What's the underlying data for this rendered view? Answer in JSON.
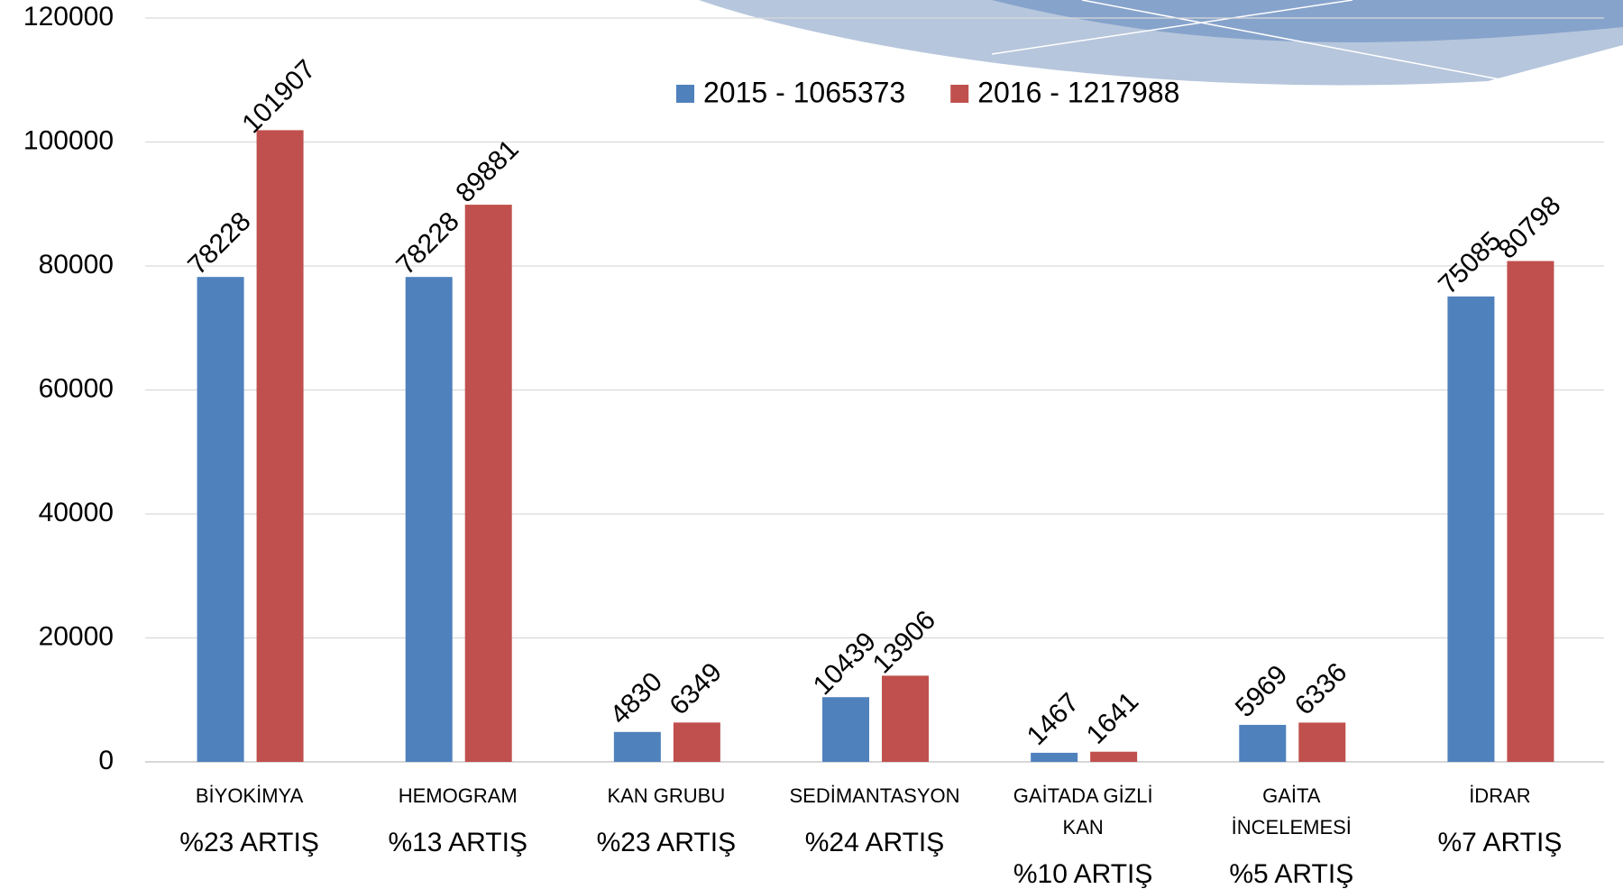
{
  "chart_data": {
    "type": "bar",
    "categories": [
      "BİYOKİMYA",
      "HEMOGRAM",
      "KAN GRUBU",
      "SEDİMANTASYON",
      "GAİTADA GİZLİ KAN",
      "GAİTA İNCELEMESİ",
      "İDRAR"
    ],
    "annotations": [
      "%23 ARTIŞ",
      "%13 ARTIŞ",
      "%23 ARTIŞ",
      "%24 ARTIŞ",
      "%10 ARTIŞ",
      "%5 ARTIŞ",
      "%7 ARTIŞ"
    ],
    "series": [
      {
        "name": "2015 - 1065373",
        "color": "#4f81bd",
        "values": [
          78228,
          78228,
          4830,
          10439,
          1467,
          5969,
          75085
        ]
      },
      {
        "name": "2016 - 1217988",
        "color": "#c0504d",
        "values": [
          101907,
          89881,
          6349,
          13906,
          1641,
          6336,
          80798
        ]
      }
    ],
    "ylim": [
      0,
      120000
    ],
    "yticks": [
      0,
      20000,
      40000,
      60000,
      80000,
      100000,
      120000
    ],
    "grid": true,
    "legend": "top"
  }
}
